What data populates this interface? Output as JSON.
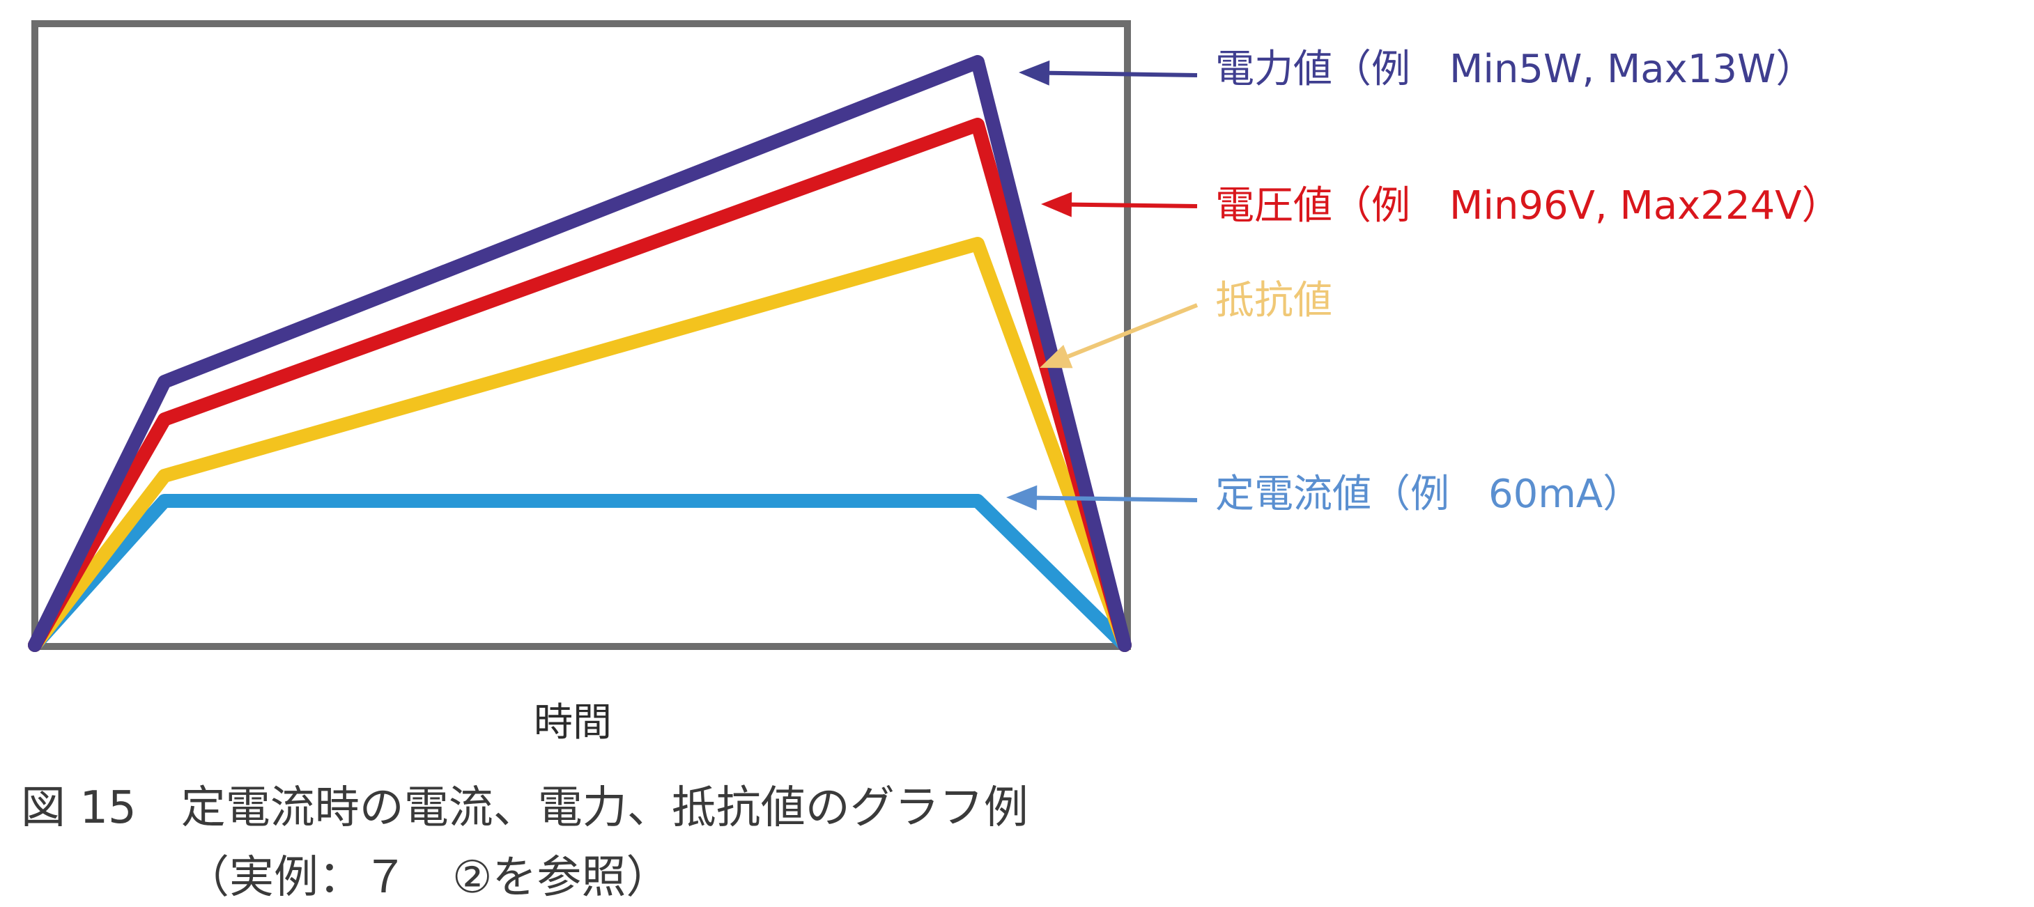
{
  "chart_data": {
    "type": "line",
    "x": [
      0,
      1,
      2,
      3
    ],
    "ylim": [
      0,
      100
    ],
    "series": [
      {
        "name": "電力値（例　Min5W, Max13W）",
        "key": "power",
        "color": "#44378e",
        "values": [
          0,
          42,
          93,
          0
        ]
      },
      {
        "name": "電圧値（例　Min96V, Max224V）",
        "key": "voltage",
        "color": "#d9161c",
        "values": [
          0,
          36,
          83,
          0
        ]
      },
      {
        "name": "抵抗値",
        "key": "resistance",
        "color": "#f3c31e",
        "values": [
          0,
          27,
          64,
          0
        ]
      },
      {
        "name": "定電流値（例　60mA）",
        "key": "current",
        "color": "#2897d6",
        "values": [
          0,
          23,
          23,
          0
        ]
      }
    ],
    "annotation_colors": {
      "power": "#3f3e8f",
      "voltage": "#d9161c",
      "resistance": "#f0c876",
      "current": "#5a8fd0"
    },
    "xlabel": "時間",
    "ylabel": "",
    "grid": false,
    "legend": "right, with arrows"
  },
  "caption": {
    "line1": "図 15　定電流時の電流、電力、抵抗値のグラフ例",
    "line2": "（実例：７　②を参照）"
  }
}
